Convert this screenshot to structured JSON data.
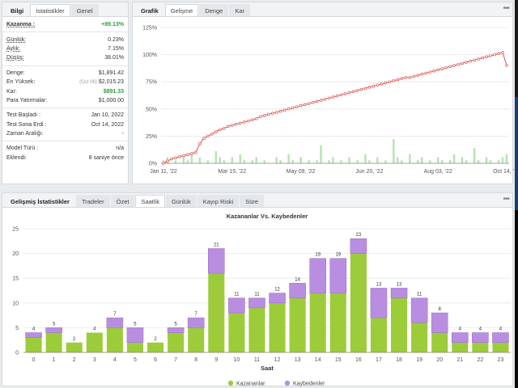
{
  "stats_panel": {
    "tabs": [
      "Bilgi",
      "İstatistikler",
      "Genel"
    ],
    "rows": [
      {
        "label": "Kazanma :",
        "value": "+89.13%",
        "green": true,
        "underline": true,
        "bold": true
      },
      {
        "sep": true
      },
      {
        "label": "Günlük:",
        "value": "0.23%",
        "underline": true
      },
      {
        "label": "Aylık:",
        "value": "7.15%",
        "underline": true
      },
      {
        "label": "Düşüş:",
        "value": "38.01%",
        "underline": true
      },
      {
        "sep": true
      },
      {
        "label": "Denge:",
        "value": "$1,891.42"
      },
      {
        "label": "En Yüksek:",
        "sub": "(Oct 06)",
        "value": "$2,015.23"
      },
      {
        "label": "Kar:",
        "value": "$891.33",
        "green": true
      },
      {
        "label": "Para Yatırmalar:",
        "value": "$1,000.00"
      },
      {
        "sep": true
      },
      {
        "label": "Test Başladı :",
        "value": "Jan 10, 2022"
      },
      {
        "label": "Test Sona Erdi :",
        "value": "Oct 14, 2022"
      },
      {
        "label": "Zaman Aralığı:",
        "value": "-"
      },
      {
        "sep": true
      },
      {
        "label": "Model Türü :",
        "value": "n/a"
      },
      {
        "label": "Eklendi:",
        "value": "8 saniye önce"
      }
    ]
  },
  "growth_panel": {
    "tabs": [
      "Grafik",
      "Gelişme",
      "Denge",
      "Kar"
    ],
    "menu": "•••"
  },
  "growth_chart": {
    "type": "line",
    "y_ticks": [
      "0%",
      "25%",
      "50%",
      "75%",
      "100%",
      "125%"
    ],
    "x_ticks": [
      "Jan 11, '22",
      "Mar 15, '22",
      "May 09, '22",
      "Jun 20, '22",
      "Aug 03, '22",
      "Oct 14, '22"
    ],
    "ylim": [
      0,
      125
    ],
    "line_color": "#d9534f",
    "bar_color": "#b6e3b0",
    "series": [
      0,
      2,
      4,
      5,
      6,
      7,
      8,
      9,
      10,
      18,
      23,
      25,
      27,
      29,
      31,
      32,
      34,
      35,
      36,
      37,
      38,
      39,
      40,
      41,
      43,
      44,
      45,
      46,
      47,
      48,
      49,
      50,
      51,
      52,
      53,
      54,
      55,
      56,
      57,
      58,
      59,
      60,
      61,
      62,
      63,
      64,
      65,
      66,
      67,
      68,
      69,
      70,
      71,
      72,
      73,
      74,
      75,
      76,
      77,
      78,
      79,
      79,
      80,
      81,
      82,
      83,
      84,
      85,
      86,
      87,
      88,
      89,
      90,
      91,
      92,
      93,
      94,
      95,
      96,
      97,
      98,
      99,
      100,
      101,
      102,
      90
    ],
    "volumes": [
      1,
      2,
      0,
      1,
      0,
      2,
      1,
      3,
      0,
      2,
      0,
      1,
      0,
      4,
      2,
      1,
      0,
      2,
      0,
      3,
      1,
      0,
      1,
      2,
      0,
      1,
      0,
      0,
      2,
      1,
      0,
      3,
      1,
      0,
      2,
      0,
      1,
      0,
      1,
      6,
      0,
      1,
      2,
      0,
      1,
      0,
      2,
      0,
      1,
      0,
      3,
      1,
      0,
      2,
      0,
      1,
      0,
      8,
      2,
      1,
      0,
      3,
      0,
      1,
      2,
      0,
      1,
      0,
      2,
      1,
      0,
      1,
      3,
      0,
      2,
      1,
      0,
      5,
      1,
      0,
      2,
      1,
      0,
      1,
      2,
      3
    ]
  },
  "advanced_panel": {
    "tabs": [
      "Gelişmiş İstatistikler",
      "Tradeler",
      "Özet",
      "Saatlik",
      "Günlük",
      "Kayıp Riski",
      "Süre"
    ],
    "menu": "•••"
  },
  "chart_data": {
    "type": "bar",
    "title": "Kazananlar Vs. Kaybedenler",
    "xlabel": "Saat",
    "ylabel": "",
    "ylim": [
      0,
      25
    ],
    "y_ticks": [
      0,
      5,
      10,
      15,
      20,
      25
    ],
    "categories": [
      "0",
      "1",
      "2",
      "3",
      "4",
      "5",
      "6",
      "7",
      "8",
      "9",
      "10",
      "11",
      "12",
      "13",
      "14",
      "15",
      "16",
      "17",
      "18",
      "19",
      "20",
      "21",
      "22",
      "23"
    ],
    "series": [
      {
        "name": "Kazananlar",
        "color": "#9ccc3a",
        "values": [
          3,
          4,
          2,
          4,
          5,
          2,
          2,
          4,
          5,
          16,
          8,
          9,
          10,
          11,
          12,
          12,
          20,
          7,
          11,
          6,
          4,
          2,
          2,
          2
        ]
      },
      {
        "name": "Kaybedenler",
        "color": "#b98ee0",
        "values": [
          1,
          1,
          0,
          0,
          2,
          3,
          0,
          1,
          2,
          5,
          3,
          2,
          2,
          3,
          7,
          7,
          3,
          6,
          2,
          5,
          4,
          2,
          2,
          2
        ]
      }
    ],
    "totals": [
      "4",
      "5",
      "2",
      "4",
      "7",
      "5",
      "2",
      "5",
      "7",
      "21",
      "11",
      "11",
      "12",
      "14",
      "19",
      "19",
      "23",
      "13",
      "13",
      "11",
      "8",
      "4",
      "4",
      "4"
    ],
    "legend_placement": "bottom-center"
  }
}
